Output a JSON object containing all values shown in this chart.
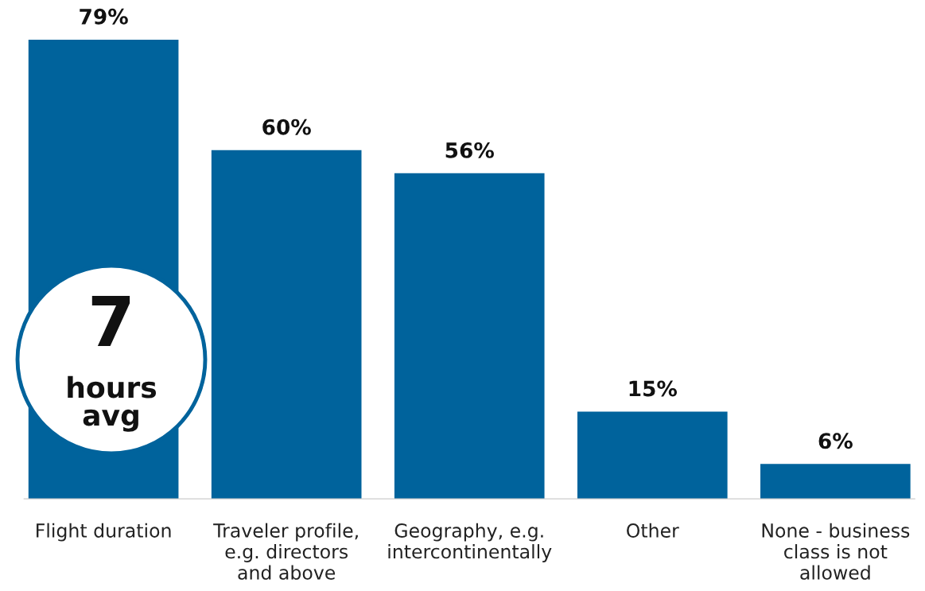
{
  "chart_data": {
    "type": "bar",
    "categories": [
      "Flight duration",
      "Traveler profile,\ne.g. directors\nand above",
      "Geography, e.g.\nintercontinentally",
      "Other",
      "None - business\nclass is not\nallowed"
    ],
    "values": [
      79,
      60,
      56,
      15,
      6
    ],
    "value_labels": [
      "79%",
      "60%",
      "56%",
      "15%",
      "6%"
    ],
    "color": "#00639c",
    "grid": false,
    "legend": false,
    "annotations": [
      "7",
      "hours\navg"
    ]
  }
}
